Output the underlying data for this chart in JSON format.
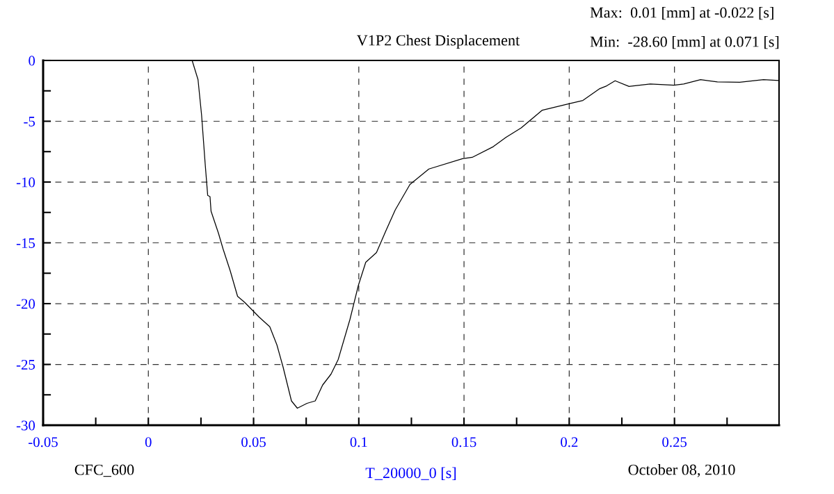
{
  "chart_data": {
    "type": "line",
    "title": "V1P2 Chest Displacement",
    "xlabel": "T_20000_0 [s]",
    "annotations": [
      "Max:  0.01 [mm] at -0.022 [s]",
      "Min:  -28.60 [mm] at 0.071 [s]",
      "CFC_600",
      "October 08, 2010"
    ],
    "x": [
      -0.05,
      0.0,
      0.0208,
      0.0236,
      0.0253,
      0.027,
      0.0282,
      0.0293,
      0.0298,
      0.0333,
      0.0355,
      0.0389,
      0.0424,
      0.0458,
      0.0526,
      0.0577,
      0.0611,
      0.064,
      0.068,
      0.0708,
      0.0754,
      0.0793,
      0.0828,
      0.0868,
      0.0902,
      0.0958,
      0.0998,
      0.1033,
      0.1084,
      0.1129,
      0.1173,
      0.1243,
      0.1333,
      0.1493,
      0.1539,
      0.1639,
      0.1699,
      0.1772,
      0.1872,
      0.1998,
      0.2065,
      0.2145,
      0.2178,
      0.2218,
      0.2284,
      0.2385,
      0.2498,
      0.2544,
      0.2624,
      0.2704,
      0.281,
      0.2923,
      0.2997
    ],
    "series": [
      {
        "color": "#000000",
        "values": [
          0.0,
          0.0,
          0.0,
          -1.57,
          -4.5,
          -8.5,
          -11.1,
          -11.2,
          -12.4,
          -14.2,
          -15.5,
          -17.3,
          -19.4,
          -19.9,
          -21.1,
          -21.9,
          -23.4,
          -25.2,
          -28.0,
          -28.6,
          -28.2,
          -28.0,
          -26.7,
          -25.8,
          -24.6,
          -21.3,
          -18.5,
          -16.6,
          -15.8,
          -14.0,
          -12.3,
          -10.2,
          -8.93,
          -8.08,
          -7.97,
          -7.09,
          -6.33,
          -5.54,
          -4.09,
          -3.57,
          -3.29,
          -2.32,
          -2.09,
          -1.67,
          -2.14,
          -1.93,
          -2.04,
          -1.93,
          -1.58,
          -1.77,
          -1.79,
          -1.58,
          -1.65
        ]
      }
    ],
    "xlim": [
      -0.05,
      0.2997
    ],
    "ylim": [
      -30,
      0
    ],
    "xticks": [
      -0.05,
      {
        "value": -0.025,
        "label": null
      },
      0,
      {
        "value": 0.025,
        "label": null
      },
      0.05,
      {
        "value": 0.075,
        "label": null
      },
      0.1,
      {
        "value": 0.125,
        "label": null
      },
      0.15,
      {
        "value": 0.175,
        "label": null
      },
      0.2,
      {
        "value": 0.225,
        "label": null
      },
      0.25,
      {
        "value": 0.275,
        "label": null
      }
    ],
    "yticks": [
      -30,
      {
        "value": -27.5,
        "label": null
      },
      -25,
      {
        "value": -22.5,
        "label": null
      },
      -20,
      {
        "value": -17.5,
        "label": null
      },
      -15,
      {
        "value": -12.5,
        "label": null
      },
      -10,
      {
        "value": -7.5,
        "label": null
      },
      -5,
      {
        "value": -2.5,
        "label": null
      },
      0
    ],
    "grid": true,
    "line_style": "solid",
    "marker": "none"
  }
}
